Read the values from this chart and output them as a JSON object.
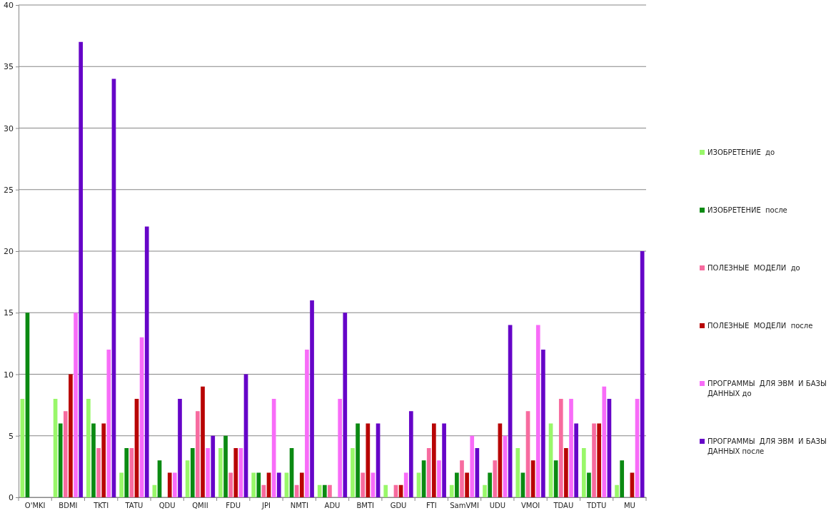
{
  "chart_data": {
    "type": "bar",
    "categories": [
      "O'MKI",
      "BDMI",
      "TKTI",
      "TATU",
      "QDU",
      "QMII",
      "FDU",
      "JPI",
      "NMTI",
      "ADU",
      "BMTI",
      "GDU",
      "FTI",
      "SamVMI",
      "UDU",
      "VMOI",
      "TDAU",
      "TDTU",
      "MU"
    ],
    "series": [
      {
        "name": "ИЗОБРЕТЕНИЕ  до",
        "color": "#99f76a",
        "values": [
          8,
          8,
          8,
          2,
          1,
          3,
          4,
          2,
          2,
          1,
          4,
          1,
          2,
          1,
          1,
          4,
          6,
          4,
          1
        ]
      },
      {
        "name": "ИЗОБРЕТЕНИЕ  после",
        "color": "#0b8a12",
        "values": [
          15,
          6,
          6,
          4,
          3,
          4,
          5,
          2,
          4,
          1,
          6,
          0,
          3,
          2,
          2,
          2,
          3,
          2,
          3
        ]
      },
      {
        "name": "ПОЛЕЗНЫЕ  МОДЕЛИ  до",
        "color": "#f76b9f",
        "values": [
          0,
          7,
          4,
          4,
          0,
          7,
          2,
          1,
          1,
          1,
          2,
          1,
          4,
          3,
          3,
          7,
          8,
          6,
          0
        ]
      },
      {
        "name": "ПОЛЕЗНЫЕ  МОДЕЛИ  после",
        "color": "#b80505",
        "values": [
          0,
          10,
          6,
          8,
          2,
          9,
          4,
          2,
          2,
          0,
          6,
          1,
          6,
          2,
          6,
          3,
          4,
          6,
          2
        ]
      },
      {
        "name": "ПРОГРАММЫ  ДЛЯ ЭВМ  И БАЗЫ ДАННЫХ до",
        "color": "#f86cf8",
        "values": [
          0,
          15,
          12,
          13,
          2,
          4,
          4,
          8,
          12,
          8,
          2,
          2,
          3,
          5,
          5,
          14,
          8,
          9,
          8
        ]
      },
      {
        "name": "ПРОГРАММЫ  ДЛЯ ЭВМ  И БАЗЫ ДАННЫХ после",
        "color": "#6605c8",
        "values": [
          0,
          37,
          34,
          22,
          8,
          5,
          10,
          2,
          16,
          15,
          6,
          7,
          6,
          4,
          14,
          12,
          6,
          8,
          20
        ]
      }
    ],
    "ylim": [
      0,
      40
    ],
    "yticks": [
      0,
      5,
      10,
      15,
      20,
      25,
      30,
      35,
      40
    ],
    "grid": "y",
    "legend": "right"
  }
}
